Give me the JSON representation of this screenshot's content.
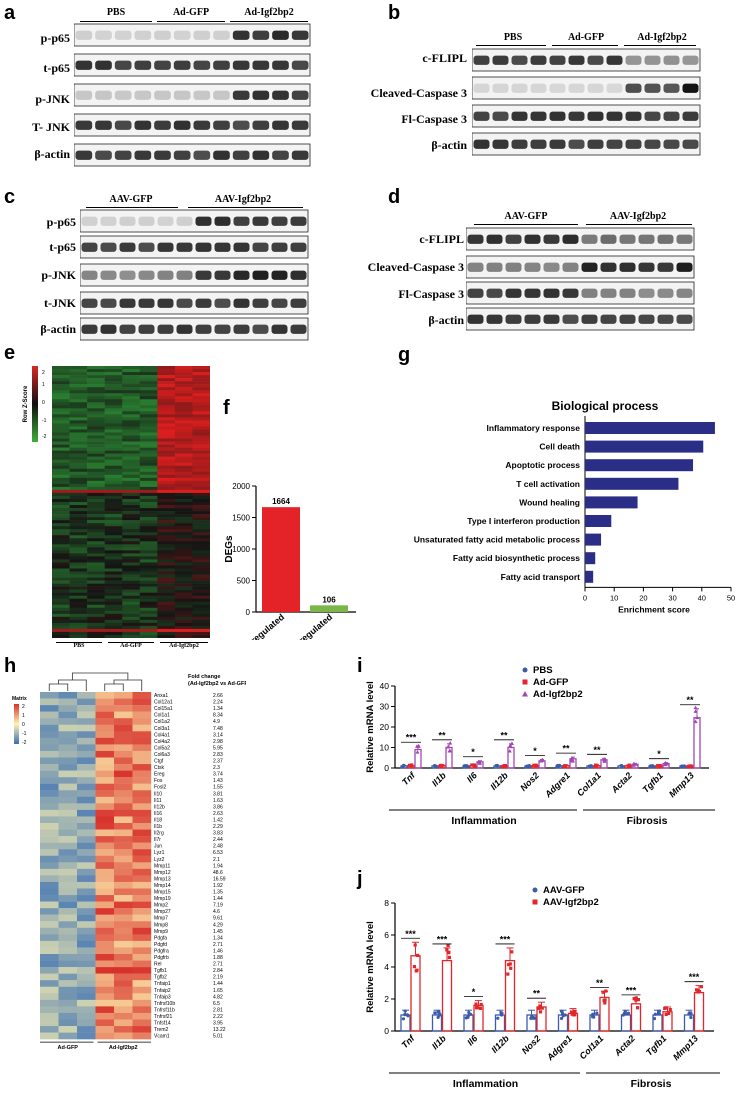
{
  "panels": {
    "a": "a",
    "b": "b",
    "c": "c",
    "d": "d",
    "e": "e",
    "f": "f",
    "g": "g",
    "h": "h",
    "i": "i",
    "j": "j"
  },
  "blot_a": {
    "groups": [
      "PBS",
      "Ad-GFP",
      "Ad-Igf2bp2"
    ],
    "rows": [
      "p-p65",
      "t-p65",
      "p-JNK",
      "T- JNK",
      "β-actin"
    ]
  },
  "blot_b": {
    "groups": [
      "PBS",
      "Ad-GFP",
      "Ad-Igf2bp2"
    ],
    "rows": [
      "c-FLIPL",
      "Cleaved-Caspase 3",
      "Fl-Caspase 3",
      "β-actin"
    ]
  },
  "blot_c": {
    "groups": [
      "AAV-GFP",
      "AAV-Igf2bp2"
    ],
    "rows": [
      "p-p65",
      "t-p65",
      "p-JNK",
      "t-JNK",
      "β-actin"
    ]
  },
  "blot_d": {
    "groups": [
      "AAV-GFP",
      "AAV-Igf2bp2"
    ],
    "rows": [
      "c-FLIPL",
      "Cleaved-Caspase 3",
      "Fl-Caspase 3",
      "β-actin"
    ]
  },
  "heatmap_e": {
    "legend_title": "Row Z-Score",
    "legend_ticks": [
      "2",
      "1",
      "0",
      "-1",
      "-2"
    ],
    "groups": [
      "PBS",
      "Ad-GFP",
      "Ad-Igf2bp2"
    ]
  },
  "colors": {
    "bar_up": "#e32327",
    "bar_down": "#7ab648",
    "go_bar": "#2b2e86",
    "pbs": "#3b5bab",
    "adgfp": "#e2262b",
    "adigf": "#a347b4"
  },
  "chart_data": [
    {
      "id": "f",
      "type": "bar",
      "categories": [
        "Upregulated",
        "Downregulated"
      ],
      "values": [
        1664,
        106
      ],
      "ylabel": "DEGs",
      "ylim": [
        0,
        2000
      ],
      "yticks": [
        "0",
        "500",
        "1000",
        "1500",
        "2000"
      ]
    },
    {
      "id": "g",
      "type": "bar",
      "orientation": "horizontal",
      "title": "Biological process",
      "categories": [
        "Inflammatory response",
        "Cell death",
        "Apoptotic process",
        "T cell activation",
        "Wound healing",
        "Type I interferon production",
        "Unsaturated fatty acid metabolic process",
        "Fatty acid biosynthetic process",
        "Fatty acid transport"
      ],
      "values": [
        44.5,
        40.5,
        37,
        32,
        18,
        9,
        5.5,
        3.5,
        2.8
      ],
      "xlabel": "Enrichment score",
      "xlim": [
        0,
        50
      ],
      "xticks": [
        "0",
        "10",
        "20",
        "30",
        "40",
        "50"
      ]
    },
    {
      "id": "i",
      "type": "bar",
      "ylabel": "Relative  mRNA level",
      "ylim": [
        0,
        40
      ],
      "yticks": [
        "0",
        "10",
        "20",
        "30",
        "40"
      ],
      "categories": [
        "Tnf",
        "Il1b",
        "Il6",
        "Il12b",
        "Nos2",
        "Adgre1",
        "Col1a1",
        "Acta2",
        "Tgfb1",
        "Mmp13"
      ],
      "series": [
        {
          "name": "PBS",
          "values": [
            1,
            1,
            1,
            1,
            1,
            1,
            1,
            1,
            1,
            1
          ]
        },
        {
          "name": "Ad-GFP",
          "values": [
            1.2,
            1.3,
            1.2,
            1.1,
            1.2,
            1.2,
            1.1,
            1.1,
            1.1,
            1.0
          ]
        },
        {
          "name": "Ad-Igf2bp2",
          "values": [
            9,
            10,
            3,
            10,
            3.5,
            4.5,
            4,
            1.8,
            2.2,
            24.5
          ]
        }
      ],
      "significance": [
        "***",
        "**",
        "*",
        "**",
        "*",
        "**",
        "**",
        "",
        "*",
        "**"
      ],
      "group_labels": [
        "Inflammation",
        "Fibrosis"
      ]
    },
    {
      "id": "j",
      "type": "bar",
      "ylabel": "Relative  mRNA level",
      "ylim": [
        0,
        8
      ],
      "yticks": [
        "0",
        "2",
        "4",
        "6",
        "8"
      ],
      "categories": [
        "Tnf",
        "Il1b",
        "Il6",
        "Il12b",
        "Nos2",
        "Adgre1",
        "Col1a1",
        "Acta2",
        "Tgfb1",
        "Mmp13"
      ],
      "series": [
        {
          "name": "AAV-GFP",
          "values": [
            1,
            1,
            1,
            1,
            1,
            1,
            1,
            1,
            1,
            1
          ]
        },
        {
          "name": "AAV-Igf2bp2",
          "values": [
            4.7,
            4.4,
            1.6,
            4.4,
            1.5,
            1.1,
            2.1,
            1.7,
            1.2,
            2.4
          ]
        }
      ],
      "significance": [
        "***",
        "***",
        "*",
        "***",
        "**",
        "",
        "**",
        "***",
        "",
        "***"
      ],
      "group_labels": [
        "Inflammation",
        "Fibrosis"
      ]
    }
  ],
  "heatmap_h": {
    "legend_title": "Matrix",
    "legend_ticks": [
      "2",
      "1",
      "0",
      "-1",
      "-2"
    ],
    "fold_header_1": "Fold change",
    "fold_header_2": "(Ad-Igf2bp2 vs Ad-GFP)",
    "groups": [
      "Ad-GFP",
      "Ad-Igf2bp2"
    ],
    "genes": [
      {
        "name": "Anxa1",
        "fc": "2.66"
      },
      {
        "name": "Col12a1",
        "fc": "2.24"
      },
      {
        "name": "Col15a1",
        "fc": "1.34"
      },
      {
        "name": "Col1a1",
        "fc": "8.34"
      },
      {
        "name": "Col1a2",
        "fc": "4.9"
      },
      {
        "name": "Col3a1",
        "fc": "7.48"
      },
      {
        "name": "Col4a1",
        "fc": "3.14"
      },
      {
        "name": "Col4a2",
        "fc": "2.98"
      },
      {
        "name": "Col5a2",
        "fc": "5.95"
      },
      {
        "name": "Col6a3",
        "fc": "2.83"
      },
      {
        "name": "Ctgf",
        "fc": "2.37"
      },
      {
        "name": "Ctsk",
        "fc": "2.3"
      },
      {
        "name": "Ereg",
        "fc": "3.74"
      },
      {
        "name": "Fos",
        "fc": "1.43"
      },
      {
        "name": "Fosl2",
        "fc": "1.55"
      },
      {
        "name": "Il10",
        "fc": "3.81"
      },
      {
        "name": "Il11",
        "fc": "1.63"
      },
      {
        "name": "Il12b",
        "fc": "3.86"
      },
      {
        "name": "Il16",
        "fc": "2.63"
      },
      {
        "name": "Il18",
        "fc": "1.42"
      },
      {
        "name": "Il1b",
        "fc": "2.29"
      },
      {
        "name": "Il2rg",
        "fc": "3.83"
      },
      {
        "name": "Il7r",
        "fc": "2.44"
      },
      {
        "name": "Jun",
        "fc": "2.48"
      },
      {
        "name": "Lyz1",
        "fc": "6.53"
      },
      {
        "name": "Lyz2",
        "fc": "2.1"
      },
      {
        "name": "Mmp11",
        "fc": "1.94"
      },
      {
        "name": "Mmp12",
        "fc": "48.6"
      },
      {
        "name": "Mmp13",
        "fc": "16.59"
      },
      {
        "name": "Mmp14",
        "fc": "1.92"
      },
      {
        "name": "Mmp15",
        "fc": "1.35"
      },
      {
        "name": "Mmp19",
        "fc": "1.44"
      },
      {
        "name": "Mmp2",
        "fc": "7.19"
      },
      {
        "name": "Mmp27",
        "fc": "4.6"
      },
      {
        "name": "Mmp7",
        "fc": "9.61"
      },
      {
        "name": "Mmp8",
        "fc": "4.29"
      },
      {
        "name": "Mmp9",
        "fc": "1.45"
      },
      {
        "name": "Pdgfa",
        "fc": "1.34"
      },
      {
        "name": "Pdgfd",
        "fc": "2.71"
      },
      {
        "name": "Pdgfra",
        "fc": "1.46"
      },
      {
        "name": "Pdgfrb",
        "fc": "1.88"
      },
      {
        "name": "Rel",
        "fc": "2.71"
      },
      {
        "name": "Tgfb1",
        "fc": "2.84"
      },
      {
        "name": "Tgfb2",
        "fc": "2.19"
      },
      {
        "name": "Tnfaip1",
        "fc": "1.44"
      },
      {
        "name": "Tnfaip2",
        "fc": "1.65"
      },
      {
        "name": "Tnfaip3",
        "fc": "4.82"
      },
      {
        "name": "Tnfrsf10b",
        "fc": "6.5"
      },
      {
        "name": "Tnfrsf11b",
        "fc": "2.81"
      },
      {
        "name": "Tnfrsf21",
        "fc": "2.22"
      },
      {
        "name": "Tnfsf14",
        "fc": "3.95"
      },
      {
        "name": "Trem2",
        "fc": "13.22"
      },
      {
        "name": "Vcam1",
        "fc": "5.01"
      }
    ]
  }
}
